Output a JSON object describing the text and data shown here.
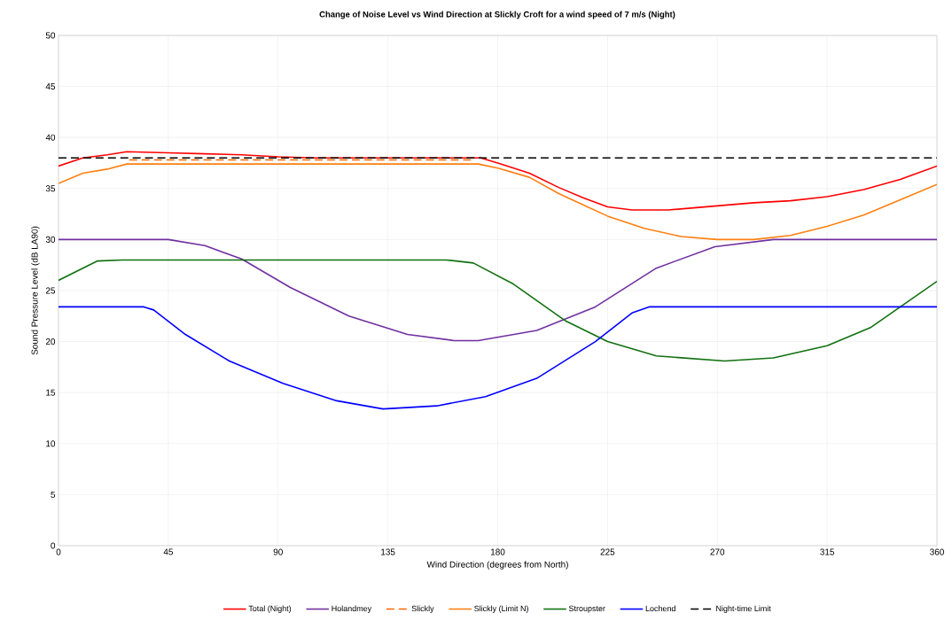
{
  "chart_data": {
    "type": "line",
    "title": "Change of Noise Level vs Wind Direction at Slickly Croft for a wind speed of 7 m/s (Night)",
    "xlabel": "Wind Direction (degrees from North)",
    "ylabel": "Sound Pressure Level (dB LA90)",
    "xlim": [
      0,
      360
    ],
    "ylim": [
      0,
      50
    ],
    "xticks": [
      0,
      45,
      90,
      135,
      180,
      225,
      270,
      315,
      360
    ],
    "yticks": [
      0,
      5,
      10,
      15,
      20,
      25,
      30,
      35,
      40,
      45,
      50
    ],
    "grid": true,
    "legend": "bottom",
    "line_style": "solid",
    "marker": "none",
    "series": [
      {
        "name": "Total (Night)",
        "color": "#ff0000",
        "x": [
          0,
          10,
          20,
          28,
          45,
          60,
          75,
          90,
          105,
          120,
          135,
          150,
          165,
          173,
          180,
          193,
          205,
          215,
          225,
          235,
          250,
          270,
          285,
          300,
          315,
          330,
          345,
          360
        ],
        "values": [
          37.2,
          38.0,
          38.3,
          38.6,
          38.5,
          38.4,
          38.3,
          38.1,
          38.0,
          38.0,
          38.0,
          38.0,
          38.0,
          38.0,
          37.5,
          36.5,
          35.1,
          34.1,
          33.2,
          32.9,
          32.9,
          33.3,
          33.6,
          33.8,
          34.2,
          34.9,
          35.9,
          37.2
        ]
      },
      {
        "name": "Holandmey",
        "color": "#7030a0",
        "x": [
          0,
          45,
          60,
          75,
          95,
          119,
          143,
          162,
          172,
          196,
          220,
          245,
          269,
          293,
          360
        ],
        "values": [
          30,
          30,
          29.4,
          28.1,
          25.3,
          22.5,
          20.7,
          20.1,
          20.1,
          21.1,
          23.4,
          27.2,
          29.3,
          30,
          30
        ]
      },
      {
        "name": "Slickly",
        "color": "#ff6600",
        "line_style": "dashed",
        "x": [
          29,
          169
        ],
        "values": [
          37.8,
          37.8
        ]
      },
      {
        "name": "Slickly (Limit N)",
        "color": "#ff7f10",
        "x": [
          0,
          10,
          20,
          28,
          172,
          180,
          193,
          205,
          215,
          225,
          240,
          255,
          270,
          285,
          300,
          315,
          330,
          345,
          360
        ],
        "values": [
          35.5,
          36.5,
          36.9,
          37.4,
          37.4,
          37.0,
          36.1,
          34.5,
          33.4,
          32.3,
          31.1,
          30.3,
          30.0,
          30.0,
          30.4,
          31.3,
          32.4,
          33.9,
          35.4
        ]
      },
      {
        "name": "Stroupster",
        "color": "#107010",
        "x": [
          0,
          16,
          26,
          159,
          170,
          186,
          208,
          225,
          245,
          273,
          293,
          315,
          333,
          345,
          360
        ],
        "values": [
          26.0,
          27.9,
          28.0,
          28.0,
          27.7,
          25.7,
          22.0,
          20.0,
          18.6,
          18.1,
          18.4,
          19.6,
          21.4,
          23.4,
          25.9
        ]
      },
      {
        "name": "Lochend",
        "color": "#0000ff",
        "x": [
          0,
          35,
          39,
          52,
          70,
          92,
          114,
          133,
          155,
          175,
          196,
          220,
          235,
          242,
          360
        ],
        "values": [
          23.4,
          23.4,
          23.1,
          20.7,
          18.1,
          15.9,
          14.2,
          13.4,
          13.7,
          14.6,
          16.4,
          20.0,
          22.8,
          23.4,
          23.4
        ]
      },
      {
        "name": "Night-time Limit",
        "color": "#000000",
        "line_style": "dashed",
        "x": [
          0,
          360
        ],
        "values": [
          38,
          38
        ]
      }
    ]
  }
}
